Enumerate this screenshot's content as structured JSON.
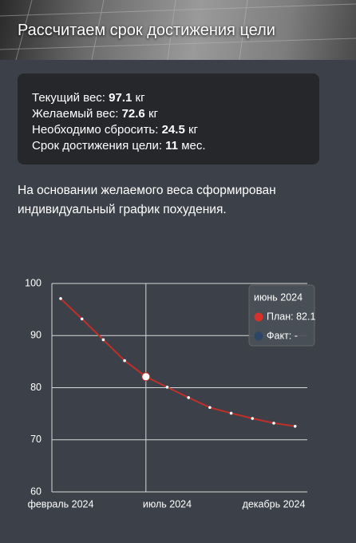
{
  "header": {
    "title": "Рассчитаем срок достижения цели"
  },
  "info": {
    "rows": [
      {
        "label": "Текущий вес:",
        "value": "97.1",
        "unit": "кг"
      },
      {
        "label": "Желаемый вес:",
        "value": "72.6",
        "unit": "кг"
      },
      {
        "label": "Необходимо сбросить:",
        "value": "24.5",
        "unit": "кг"
      },
      {
        "label": "Срок достижения цели:",
        "value": "11",
        "unit": "мес."
      }
    ]
  },
  "description": "На основании желаемого веса сформирован индивидуальный график похудения.",
  "chart_data": {
    "type": "line",
    "categories": [
      "февраль 2024",
      null,
      null,
      null,
      null,
      "июль 2024",
      null,
      null,
      null,
      null,
      "декабрь 2024",
      null
    ],
    "series": [
      {
        "name": "План",
        "color": "#c0302b",
        "values": [
          97.1,
          93.2,
          89.2,
          85.2,
          82.1,
          80.1,
          78.1,
          76.2,
          75.1,
          74.1,
          73.2,
          72.6
        ]
      }
    ],
    "ylim": [
      60,
      100
    ],
    "yticks": [
      60,
      70,
      80,
      90,
      100
    ],
    "grid": true,
    "tooltip": {
      "index": 4,
      "title": "июнь 2024",
      "items": [
        {
          "label": "План: 82.1",
          "color": "#d6312b"
        },
        {
          "label": "Факт: -",
          "color": "#2c4766"
        }
      ]
    }
  }
}
